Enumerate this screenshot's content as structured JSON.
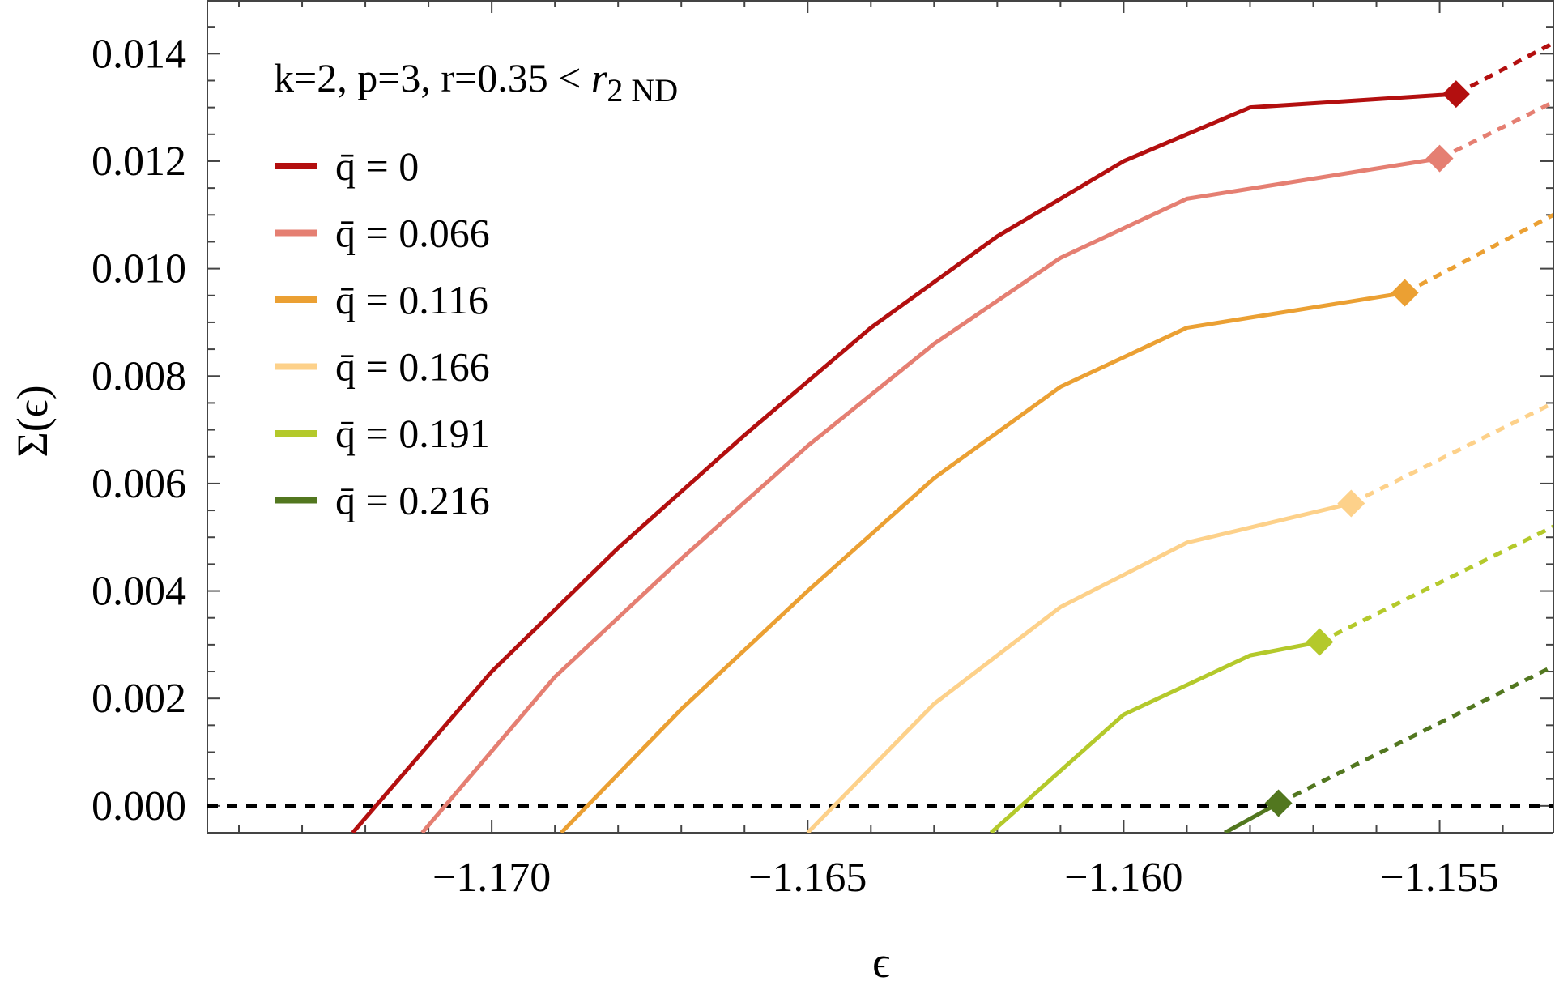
{
  "chart_data": {
    "type": "line",
    "xlabel": "ϵ",
    "ylabel": "Σ(ϵ)",
    "xlim": [
      -1.1745,
      -1.1532
    ],
    "ylim": [
      -0.0005,
      0.015
    ],
    "x_ticks": [
      -1.17,
      -1.165,
      -1.16,
      -1.155
    ],
    "x_tick_labels": [
      "−1.170",
      "−1.165",
      "−1.160",
      "−1.155"
    ],
    "y_ticks": [
      0.0,
      0.002,
      0.004,
      0.006,
      0.008,
      0.01,
      0.012,
      0.014
    ],
    "y_tick_labels": [
      "0.000",
      "0.002",
      "0.004",
      "0.006",
      "0.008",
      "0.010",
      "0.012",
      "0.014"
    ],
    "annotation": {
      "main": "k=2, p=3, r=0.35  < ",
      "italic": "r",
      "subscript": "2 ND"
    },
    "legend_position": "top-left",
    "grid": false,
    "reference_line": {
      "y": 0.0,
      "style": "dashed",
      "color": "#000000"
    },
    "series": [
      {
        "name": "q̄ = 0",
        "color": "#b30f0f",
        "solid": [
          [
            -1.1722,
            -0.0005
          ],
          [
            -1.17,
            0.0025
          ],
          [
            -1.168,
            0.0048
          ],
          [
            -1.166,
            0.0069
          ],
          [
            -1.164,
            0.0089
          ],
          [
            -1.162,
            0.0106
          ],
          [
            -1.16,
            0.012
          ],
          [
            -1.158,
            0.013
          ],
          [
            -1.15474,
            0.01325
          ]
        ],
        "marker": [
          -1.15474,
          0.01325
        ],
        "dashed": [
          [
            -1.15474,
            0.01325
          ],
          [
            -1.1532,
            0.0142
          ]
        ]
      },
      {
        "name": "q̄ = 0.066",
        "color": "#e57f72",
        "solid": [
          [
            -1.1711,
            -0.0005
          ],
          [
            -1.169,
            0.0024
          ],
          [
            -1.167,
            0.0046
          ],
          [
            -1.165,
            0.0067
          ],
          [
            -1.163,
            0.0086
          ],
          [
            -1.161,
            0.0102
          ],
          [
            -1.159,
            0.0113
          ],
          [
            -1.155,
            0.01205
          ]
        ],
        "marker": [
          -1.155,
          0.01205
        ],
        "dashed": [
          [
            -1.155,
            0.01205
          ],
          [
            -1.1532,
            0.0131
          ]
        ]
      },
      {
        "name": "q̄ = 0.116",
        "color": "#eba033",
        "solid": [
          [
            -1.1689,
            -0.0005
          ],
          [
            -1.167,
            0.0018
          ],
          [
            -1.165,
            0.004
          ],
          [
            -1.163,
            0.0061
          ],
          [
            -1.161,
            0.0078
          ],
          [
            -1.159,
            0.0089
          ],
          [
            -1.15555,
            0.00955
          ]
        ],
        "marker": [
          -1.15555,
          0.00955
        ],
        "dashed": [
          [
            -1.15555,
            0.00955
          ],
          [
            -1.1532,
            0.011
          ]
        ]
      },
      {
        "name": "q̄ = 0.166",
        "color": "#fdd18a",
        "solid": [
          [
            -1.165,
            -0.0005
          ],
          [
            -1.163,
            0.0019
          ],
          [
            -1.161,
            0.0037
          ],
          [
            -1.159,
            0.0049
          ],
          [
            -1.1564,
            0.00563
          ]
        ],
        "marker": [
          -1.1564,
          0.00563
        ],
        "dashed": [
          [
            -1.1564,
            0.00563
          ],
          [
            -1.1532,
            0.0075
          ]
        ]
      },
      {
        "name": "q̄ = 0.191",
        "color": "#b4c92b",
        "solid": [
          [
            -1.1621,
            -0.0005
          ],
          [
            -1.16,
            0.0017
          ],
          [
            -1.158,
            0.0028
          ],
          [
            -1.1569,
            0.00305
          ]
        ],
        "marker": [
          -1.1569,
          0.00305
        ],
        "dashed": [
          [
            -1.1569,
            0.00305
          ],
          [
            -1.1532,
            0.0052
          ]
        ]
      },
      {
        "name": "q̄ = 0.216",
        "color": "#52771f",
        "solid": [
          [
            -1.1584,
            -0.0005
          ],
          [
            -1.15755,
            5e-05
          ]
        ],
        "marker": [
          -1.15755,
          5e-05
        ],
        "dashed": [
          [
            -1.15755,
            5e-05
          ],
          [
            -1.1532,
            0.0026
          ]
        ]
      }
    ]
  }
}
